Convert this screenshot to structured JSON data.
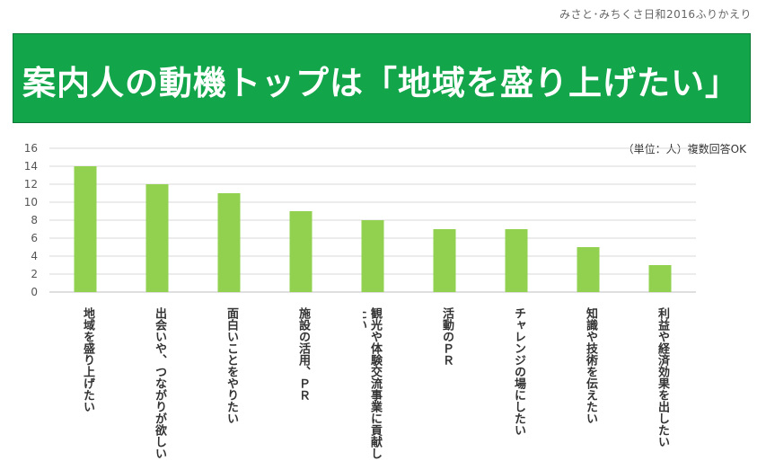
{
  "header": {
    "source": "みさと･みちくさ日和2016ふりかえり",
    "title": "案内人の動機トップは「地域を盛り上げたい」"
  },
  "unit_note": "（単位：人）複数回答OK",
  "colors": {
    "banner": "#12a54a",
    "bar": "#92d050",
    "grid": "#d9d9d9"
  },
  "chart_data": {
    "type": "bar",
    "categories": [
      "地域を盛り上げたい",
      "出会いや、つながりが欲しい",
      "面白いことをやりたい",
      "施設の活用、ＰＲ",
      "観光や体験交流事業に貢献したい",
      "活動のＰＲ",
      "チャレンジの場にしたい",
      "知識や技術を伝えたい",
      "利益や経済効果を出したい"
    ],
    "values": [
      14,
      12,
      11,
      9,
      8,
      7,
      7,
      5,
      3
    ],
    "yticks": [
      "0",
      "2",
      "4",
      "6",
      "8",
      "10",
      "12",
      "14",
      "16"
    ],
    "ylim": [
      0,
      16
    ],
    "grid": true
  }
}
